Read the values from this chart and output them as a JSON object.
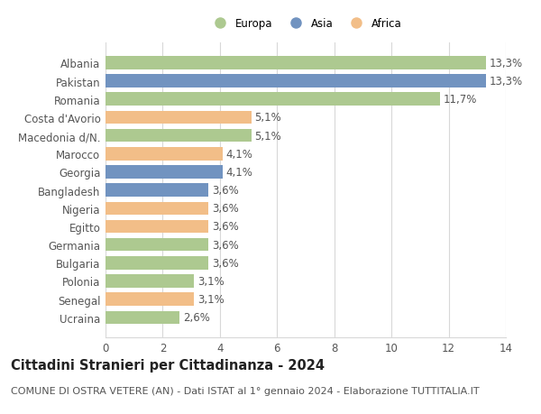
{
  "categories": [
    "Ucraina",
    "Senegal",
    "Polonia",
    "Bulgaria",
    "Germania",
    "Egitto",
    "Nigeria",
    "Bangladesh",
    "Georgia",
    "Marocco",
    "Macedonia d/N.",
    "Costa d'Avorio",
    "Romania",
    "Pakistan",
    "Albania"
  ],
  "values": [
    2.6,
    3.1,
    3.1,
    3.6,
    3.6,
    3.6,
    3.6,
    3.6,
    4.1,
    4.1,
    5.1,
    5.1,
    11.7,
    13.3,
    13.3
  ],
  "labels": [
    "2,6%",
    "3,1%",
    "3,1%",
    "3,6%",
    "3,6%",
    "3,6%",
    "3,6%",
    "3,6%",
    "4,1%",
    "4,1%",
    "5,1%",
    "5,1%",
    "11,7%",
    "13,3%",
    "13,3%"
  ],
  "continents": [
    "Europa",
    "Africa",
    "Europa",
    "Europa",
    "Europa",
    "Africa",
    "Africa",
    "Asia",
    "Asia",
    "Africa",
    "Europa",
    "Africa",
    "Europa",
    "Asia",
    "Europa"
  ],
  "colors": {
    "Europa": "#adc990",
    "Asia": "#7193c0",
    "Africa": "#f2be88"
  },
  "legend_labels": [
    "Europa",
    "Asia",
    "Africa"
  ],
  "legend_colors": [
    "#adc990",
    "#7193c0",
    "#f2be88"
  ],
  "title": "Cittadini Stranieri per Cittadinanza - 2024",
  "subtitle": "COMUNE DI OSTRA VETERE (AN) - Dati ISTAT al 1° gennaio 2024 - Elaborazione TUTTITALIA.IT",
  "xlim": [
    0,
    14
  ],
  "xticks": [
    0,
    2,
    4,
    6,
    8,
    10,
    12,
    14
  ],
  "background_color": "#ffffff",
  "grid_color": "#d8d8d8",
  "bar_height": 0.72,
  "label_fontsize": 8.5,
  "tick_fontsize": 8.5,
  "title_fontsize": 10.5,
  "subtitle_fontsize": 8.0
}
